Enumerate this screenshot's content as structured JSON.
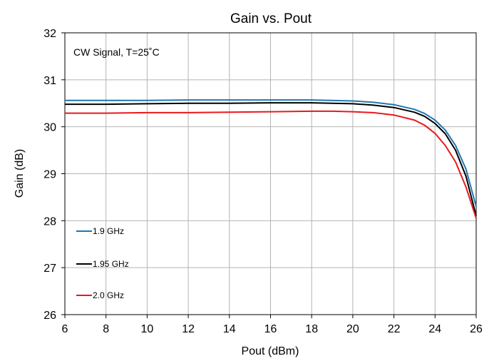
{
  "chart_data": {
    "type": "line",
    "title": "Gain vs. Pout",
    "xlabel": "Pout (dBm)",
    "ylabel": "Gain (dB)",
    "xlim": [
      6,
      26
    ],
    "ylim": [
      26,
      32
    ],
    "xticks": [
      "6",
      "8",
      "10",
      "12",
      "14",
      "16",
      "18",
      "20",
      "22",
      "24",
      "26"
    ],
    "yticks": [
      "26",
      "27",
      "28",
      "29",
      "30",
      "31",
      "32"
    ],
    "grid": true,
    "annotation": "CW Signal, T=25˚C",
    "legend_position": "bottom-left inside",
    "series": [
      {
        "name": "1.9 GHz",
        "color": "#1f77b4",
        "x": [
          6,
          8,
          10,
          12,
          14,
          16,
          18,
          20,
          21,
          22,
          23,
          23.5,
          24,
          24.5,
          25,
          25.5,
          26
        ],
        "y": [
          30.56,
          30.56,
          30.56,
          30.57,
          30.57,
          30.57,
          30.57,
          30.55,
          30.52,
          30.47,
          30.37,
          30.28,
          30.14,
          29.93,
          29.6,
          29.1,
          28.3
        ]
      },
      {
        "name": "1.95 GHz",
        "color": "#000000",
        "x": [
          6,
          8,
          10,
          12,
          14,
          16,
          18,
          20,
          21,
          22,
          23,
          23.5,
          24,
          24.5,
          25,
          25.5,
          26
        ],
        "y": [
          30.48,
          30.48,
          30.49,
          30.5,
          30.5,
          30.51,
          30.51,
          30.49,
          30.46,
          30.41,
          30.31,
          30.22,
          30.07,
          29.85,
          29.5,
          28.95,
          28.1
        ]
      },
      {
        "name": "2.0 GHz",
        "color": "#e8191e",
        "x": [
          6,
          8,
          10,
          12,
          14,
          16,
          18,
          19,
          20,
          21,
          22,
          23,
          23.5,
          24,
          24.5,
          25,
          25.5,
          26
        ],
        "y": [
          30.29,
          30.29,
          30.3,
          30.3,
          30.31,
          30.32,
          30.33,
          30.33,
          30.32,
          30.3,
          30.25,
          30.14,
          30.03,
          29.86,
          29.6,
          29.25,
          28.72,
          28.05
        ]
      }
    ]
  }
}
